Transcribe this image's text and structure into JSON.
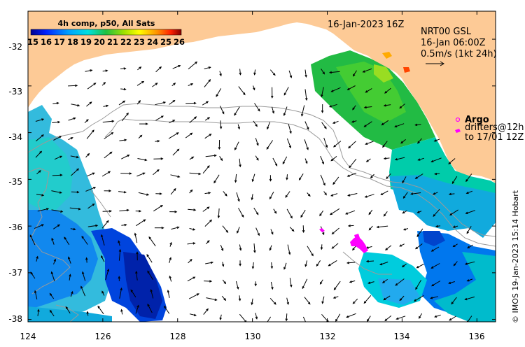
{
  "map": {
    "timestamp": "16-Jan-2023 16Z",
    "x_ticks": [
      "124",
      "126",
      "128",
      "130",
      "132",
      "134",
      "136"
    ],
    "y_ticks": [
      "-32",
      "-33",
      "-34",
      "-35",
      "-36",
      "-37",
      "-38"
    ],
    "lon_range": [
      124,
      136.5
    ],
    "lat_range": [
      -31.4,
      -38.05
    ]
  },
  "colorbar": {
    "title": "4h comp, p50, All Sats",
    "labels": [
      "15",
      "16",
      "17",
      "18",
      "19",
      "20",
      "21",
      "22",
      "23",
      "24",
      "25",
      "26"
    ]
  },
  "currents": {
    "title": "NRT00 GSL",
    "time": "16-Jan 06:00Z",
    "scale": "0.5m/s (1kt 24h)"
  },
  "legend": {
    "argo_label": "Argo",
    "drifters_line1": "drifters@12h",
    "drifters_line2": "to 17/01 12Z"
  },
  "credit": "© IMOS 19-Jan-2023 15:14 Hobart",
  "colors": {
    "land": "#fdca96",
    "drifter": "#ff00ff",
    "contour": "#9a9a9a"
  }
}
